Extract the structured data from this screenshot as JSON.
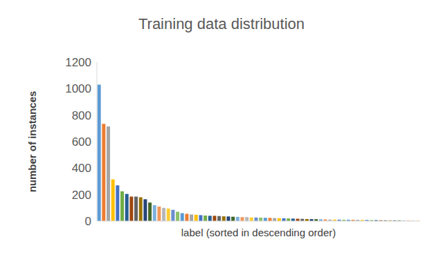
{
  "chart_data": {
    "type": "bar",
    "title": "Training data distribution",
    "x_label": "label (sorted in descending order)",
    "y_label": "number of instances",
    "categories": [
      null,
      null,
      null,
      null,
      null,
      null,
      null,
      null,
      null,
      null,
      null,
      null,
      null,
      null,
      null,
      null,
      null,
      null,
      null,
      null,
      null,
      null,
      null,
      null,
      null,
      null,
      null,
      null,
      null,
      null,
      null,
      null,
      null,
      null,
      null,
      null,
      null,
      null,
      null,
      null,
      null,
      null,
      null,
      null,
      null,
      null,
      null,
      null,
      null,
      null,
      null,
      null,
      null,
      null,
      null,
      null,
      null,
      null,
      null,
      null,
      null,
      null,
      null,
      null,
      null,
      null,
      null,
      null,
      null,
      null
    ],
    "values": [
      1030,
      735,
      715,
      315,
      270,
      225,
      205,
      185,
      185,
      180,
      165,
      140,
      120,
      110,
      100,
      95,
      85,
      70,
      60,
      55,
      50,
      48,
      45,
      42,
      40,
      40,
      38,
      36,
      35,
      33,
      32,
      30,
      30,
      28,
      27,
      26,
      25,
      24,
      23,
      22,
      21,
      20,
      19,
      18,
      17,
      16,
      15,
      15,
      14,
      13,
      12,
      12,
      11,
      10,
      10,
      9,
      9,
      8,
      8,
      7,
      7,
      6,
      6,
      5,
      5,
      5,
      4,
      4,
      3,
      3
    ],
    "colors": [
      "#5b9bd5",
      "#ed7d31",
      "#a5a5a5",
      "#ffc000",
      "#4472c4",
      "#70ad47",
      "#255e91",
      "#9e480e",
      "#636363",
      "#997300",
      "#264478",
      "#43682b",
      "#7cafdd",
      "#f1975a",
      "#b7b7b7",
      "#ffcd33",
      "#698ed0",
      "#8cc168",
      "#5b9bd5",
      "#ed7d31",
      "#a5a5a5",
      "#ffc000",
      "#4472c4",
      "#70ad47",
      "#255e91",
      "#9e480e",
      "#636363",
      "#997300",
      "#264478",
      "#43682b",
      "#7cafdd",
      "#f1975a",
      "#b7b7b7",
      "#ffcd33",
      "#698ed0",
      "#8cc168",
      "#5b9bd5",
      "#ed7d31",
      "#a5a5a5",
      "#ffc000",
      "#4472c4",
      "#70ad47",
      "#255e91",
      "#9e480e",
      "#636363",
      "#997300",
      "#264478",
      "#43682b",
      "#7cafdd",
      "#f1975a",
      "#b7b7b7",
      "#ffcd33",
      "#698ed0",
      "#8cc168",
      "#5b9bd5",
      "#ed7d31",
      "#a5a5a5",
      "#ffc000",
      "#4472c4",
      "#70ad47",
      "#255e91",
      "#9e480e",
      "#636363",
      "#997300",
      "#264478",
      "#43682b",
      "#7cafdd",
      "#f1975a",
      "#b7b7b7",
      "#ffcd33"
    ],
    "ylim": [
      0,
      1200
    ],
    "yticks": [
      0,
      200,
      400,
      600,
      800,
      1000,
      1200
    ],
    "grid": false,
    "tick_labels": "y"
  }
}
